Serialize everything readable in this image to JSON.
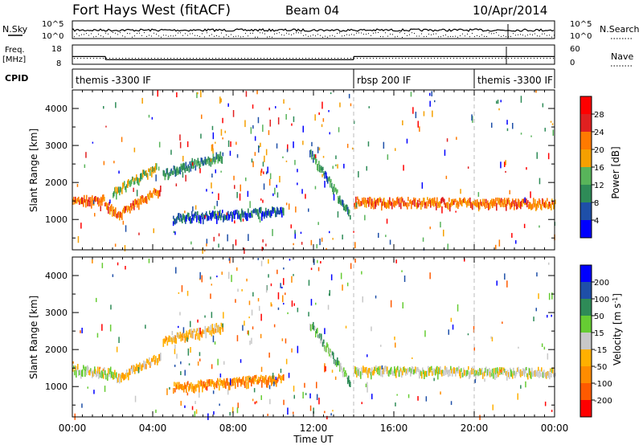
{
  "header": {
    "station": "Fort Hays West (fitACF)",
    "beam": "Beam 04",
    "date": "10/Apr/2014"
  },
  "top_panels": {
    "nsky_label": "N.Sky",
    "nsky_ticks": [
      "10^5",
      "10^0"
    ],
    "nsearch_label": "N.Search",
    "nsearch_ticks": [
      "10^5",
      "10^0"
    ],
    "freq_label": "Freq.",
    "freq_unit": "[MHz]",
    "freq_ticks": [
      "18",
      "8"
    ],
    "nave_label": "Nave",
    "nave_ticks": [
      "60",
      "0"
    ],
    "cpid_label": "CPID",
    "cpid_segments": [
      {
        "label": "themis -3300 IF",
        "start_hour": 0,
        "end_hour": 14.0
      },
      {
        "label": "rbsp 200 IF",
        "start_hour": 14.0,
        "end_hour": 20.0
      },
      {
        "label": "themis -3300 IF",
        "start_hour": 20.0,
        "end_hour": 24.0
      }
    ],
    "freq_steps": [
      {
        "start_hour": 0,
        "end_hour": 1.65,
        "mhz": 12.0
      },
      {
        "start_hour": 1.65,
        "end_hour": 14.0,
        "mhz": 10.4
      },
      {
        "start_hour": 14.0,
        "end_hour": 21.6,
        "mhz": 12.0
      },
      {
        "start_hour": 21.6,
        "end_hour": 24.0,
        "mhz": 12.0
      }
    ]
  },
  "chart_data": [
    {
      "type": "heatmap",
      "name": "Power",
      "ylabel": "Slant Range [km]",
      "ylim": [
        180,
        4500
      ],
      "yticks": [
        1000,
        2000,
        3000,
        4000
      ],
      "xlim": [
        0,
        24
      ],
      "colorbar_label": "Power [dB]",
      "colorbar_ticks": [
        "4",
        "8",
        "12",
        "16",
        "20",
        "24",
        "28"
      ],
      "colors": [
        "#0000ff",
        "#1e4fa8",
        "#2e8b57",
        "#58b45a",
        "#f5a000",
        "#ff7a00",
        "#e02020",
        "#ff0000"
      ],
      "bands": [
        {
          "t0": 0.0,
          "t1": 1.6,
          "r0": 1500,
          "r1": 1500,
          "level": 5
        },
        {
          "t0": 1.6,
          "t1": 2.2,
          "r0": 1450,
          "r1": 1100,
          "level": 5
        },
        {
          "t0": 2.2,
          "t1": 4.4,
          "r0": 1100,
          "r1": 1800,
          "level": 5
        },
        {
          "t0": 2.0,
          "t1": 4.2,
          "r0": 1700,
          "r1": 2400,
          "level": 3
        },
        {
          "t0": 4.5,
          "t1": 7.5,
          "r0": 2200,
          "r1": 2700,
          "level": 2
        },
        {
          "t0": 5.0,
          "t1": 10.5,
          "r0": 1000,
          "r1": 1200,
          "level": 1
        },
        {
          "t0": 11.8,
          "t1": 13.8,
          "r0": 2800,
          "r1": 1100,
          "level": 2
        },
        {
          "t0": 14.0,
          "t1": 24.0,
          "r0": 1450,
          "r1": 1400,
          "level": 5
        }
      ]
    },
    {
      "type": "heatmap",
      "name": "Velocity",
      "ylabel": "Slant Range [km]",
      "xlabel": "Time UT",
      "ylim": [
        180,
        4500
      ],
      "yticks": [
        1000,
        2000,
        3000,
        4000
      ],
      "xlim": [
        0,
        24
      ],
      "xticks": [
        "00:00",
        "04:00",
        "08:00",
        "12:00",
        "16:00",
        "20:00",
        "00:00"
      ],
      "colorbar_label": "Velocity [m s",
      "colorbar_label_sup": "-1",
      "colorbar_label_end": "]",
      "colorbar_ticks": [
        "-200",
        "-100",
        "-50",
        "-15",
        "15",
        "50",
        "100",
        "200"
      ],
      "colors": [
        "#ff0000",
        "#ff5a00",
        "#ff8c00",
        "#ffb000",
        "#c8c8c8",
        "#66cc33",
        "#2e8b57",
        "#1e4fa8",
        "#0000ff"
      ],
      "bands": [
        {
          "t0": 0.0,
          "t1": 2.2,
          "r0": 1450,
          "r1": 1300,
          "level": 4
        },
        {
          "t0": 2.2,
          "t1": 4.4,
          "r0": 1200,
          "r1": 1800,
          "level": 3
        },
        {
          "t0": 4.5,
          "t1": 7.5,
          "r0": 2200,
          "r1": 2600,
          "level": 3
        },
        {
          "t0": 5.0,
          "t1": 10.5,
          "r0": 950,
          "r1": 1200,
          "level": 2
        },
        {
          "t0": 11.8,
          "t1": 13.8,
          "r0": 2700,
          "r1": 1100,
          "level": 5
        },
        {
          "t0": 14.0,
          "t1": 24.0,
          "r0": 1400,
          "r1": 1350,
          "level": 4
        }
      ]
    }
  ]
}
